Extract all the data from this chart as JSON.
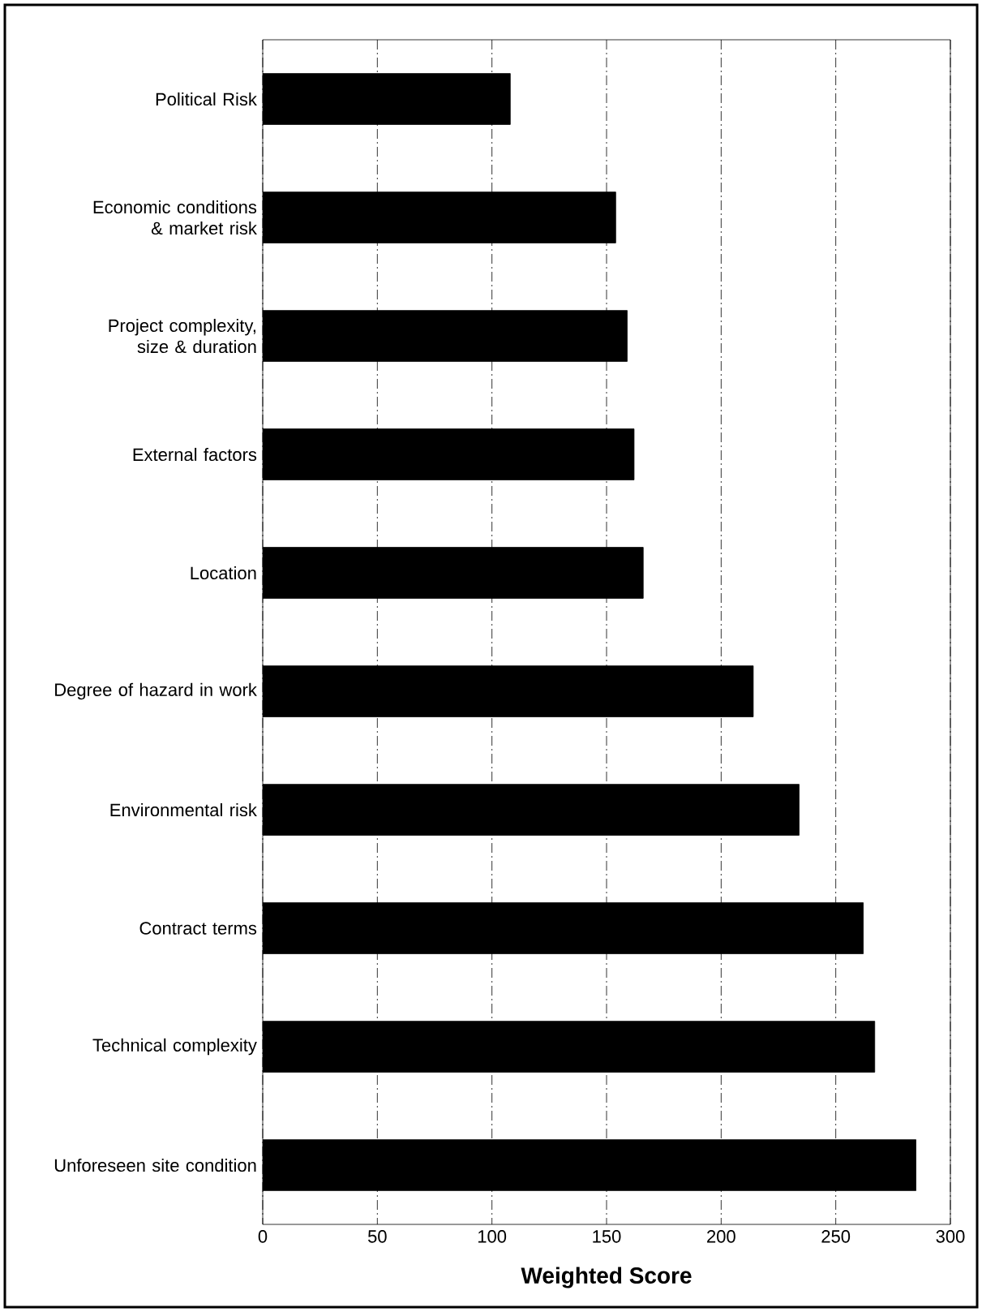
{
  "chart_data": {
    "type": "bar",
    "orientation": "horizontal",
    "categories": [
      "Political Risk",
      "Economic conditions & market risk",
      "Project complexity, size & duration",
      "External factors",
      "Location",
      "Degree of hazard in work",
      "Environmental risk",
      "Contract terms",
      "Technical complexity",
      "Unforeseen site condition"
    ],
    "values": [
      108,
      154,
      159,
      162,
      166,
      214,
      234,
      262,
      267,
      285
    ],
    "color": "#000000",
    "xlabel": "Weighted Score",
    "xlim": [
      0,
      300
    ],
    "xticks": [
      0,
      50,
      100,
      150,
      200,
      250,
      300
    ],
    "grid": "x"
  }
}
